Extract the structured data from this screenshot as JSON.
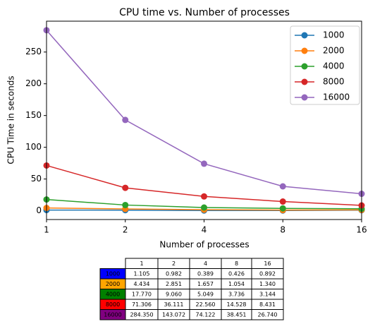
{
  "chart_data": {
    "type": "line",
    "title": "CPU time vs. Number of processes",
    "xlabel": "Number of processes",
    "ylabel": "CPU Time in seconds",
    "categories": [
      "1",
      "2",
      "4",
      "8",
      "16"
    ],
    "ylim": [
      -13.8,
      298.6
    ],
    "yticks": [
      0,
      50,
      100,
      150,
      200,
      250
    ],
    "legend": "upper right",
    "series": [
      {
        "name": "1000",
        "color": "#1f77b4",
        "label_color": "#0000ff",
        "values": [
          1.105,
          0.982,
          0.389,
          0.426,
          0.892
        ],
        "value_labels": [
          "1.105",
          "0.982",
          "0.389",
          "0.426",
          "0.892"
        ]
      },
      {
        "name": "2000",
        "color": "#ff7f0e",
        "label_color": "#ffa500",
        "values": [
          4.434,
          2.851,
          1.657,
          1.054,
          1.34
        ],
        "value_labels": [
          "4.434",
          "2.851",
          "1.657",
          "1.054",
          "1.340"
        ]
      },
      {
        "name": "4000",
        "color": "#2ca02c",
        "label_color": "#008000",
        "values": [
          17.77,
          9.06,
          5.049,
          3.736,
          3.144
        ],
        "value_labels": [
          "17.770",
          "9.060",
          "5.049",
          "3.736",
          "3.144"
        ]
      },
      {
        "name": "8000",
        "color": "#d62728",
        "label_color": "#ff0000",
        "values": [
          71.306,
          36.111,
          22.56,
          14.528,
          8.431
        ],
        "value_labels": [
          "71.306",
          "36.111",
          "22.560",
          "14.528",
          "8.431"
        ]
      },
      {
        "name": "16000",
        "color": "#9467bd",
        "label_color": "#800080",
        "values": [
          284.35,
          143.072,
          74.122,
          38.451,
          26.74
        ],
        "value_labels": [
          "284.350",
          "143.072",
          "74.122",
          "38.451",
          "26.740"
        ]
      }
    ]
  }
}
